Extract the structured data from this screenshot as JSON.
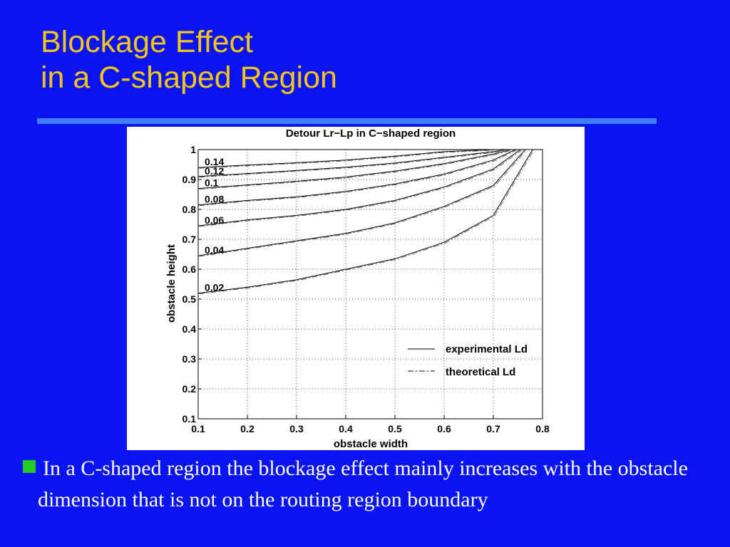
{
  "slide": {
    "title_line1": "Blockage Effect",
    "title_line2": "in a C-shaped Region",
    "bullet_text": "In a C-shaped region the blockage effect mainly increases with the obstacle dimension that is not on the routing region boundary",
    "colors": {
      "background": "#0a14f0",
      "title": "#f5c518",
      "rule": "#3f7fff",
      "bullet": "#22cc22",
      "text": "#ffffff"
    }
  },
  "chart_data": {
    "type": "line",
    "title": "Detour Lr−Lp in C−shaped region",
    "xlabel": "obstacle width",
    "ylabel": "obstacle height",
    "xlim": [
      0.1,
      0.8
    ],
    "ylim": [
      0.1,
      1.0
    ],
    "xticks": [
      "0.1",
      "0.2",
      "0.3",
      "0.4",
      "0.5",
      "0.6",
      "0.7",
      "0.8"
    ],
    "yticks": [
      "0.1",
      "0.2",
      "0.3",
      "0.4",
      "0.5",
      "0.6",
      "0.7",
      "0.8",
      "0.9",
      "1"
    ],
    "grid": true,
    "legend_position": "lower-right",
    "legend": [
      {
        "label": "experimental Ld",
        "style": "solid"
      },
      {
        "label": "theoretical Ld",
        "style": "dashdot"
      }
    ],
    "contours": [
      {
        "label": "0.02",
        "x": [
          0.1,
          0.2,
          0.3,
          0.4,
          0.5,
          0.6,
          0.7,
          0.78
        ],
        "y": [
          0.52,
          0.54,
          0.565,
          0.6,
          0.635,
          0.69,
          0.78,
          1.0
        ]
      },
      {
        "label": "0.04",
        "x": [
          0.1,
          0.2,
          0.3,
          0.4,
          0.5,
          0.6,
          0.7,
          0.765
        ],
        "y": [
          0.645,
          0.67,
          0.695,
          0.72,
          0.755,
          0.81,
          0.88,
          1.0
        ]
      },
      {
        "label": "0.06",
        "x": [
          0.1,
          0.2,
          0.3,
          0.4,
          0.5,
          0.6,
          0.7,
          0.755
        ],
        "y": [
          0.745,
          0.765,
          0.78,
          0.8,
          0.83,
          0.875,
          0.935,
          1.0
        ]
      },
      {
        "label": "0.08",
        "x": [
          0.1,
          0.2,
          0.3,
          0.4,
          0.5,
          0.6,
          0.7,
          0.745
        ],
        "y": [
          0.815,
          0.83,
          0.842,
          0.86,
          0.885,
          0.918,
          0.965,
          1.0
        ]
      },
      {
        "label": "0.1",
        "x": [
          0.1,
          0.2,
          0.3,
          0.4,
          0.5,
          0.6,
          0.7,
          0.735
        ],
        "y": [
          0.87,
          0.882,
          0.894,
          0.908,
          0.928,
          0.953,
          0.985,
          1.0
        ]
      },
      {
        "label": "0.12",
        "x": [
          0.1,
          0.2,
          0.3,
          0.4,
          0.5,
          0.6,
          0.7,
          0.725
        ],
        "y": [
          0.91,
          0.92,
          0.93,
          0.941,
          0.955,
          0.974,
          0.993,
          1.0
        ]
      },
      {
        "label": "0.14",
        "x": [
          0.1,
          0.2,
          0.3,
          0.4,
          0.5,
          0.6,
          0.7
        ],
        "y": [
          0.94,
          0.948,
          0.956,
          0.965,
          0.978,
          0.993,
          1.0
        ]
      }
    ]
  }
}
